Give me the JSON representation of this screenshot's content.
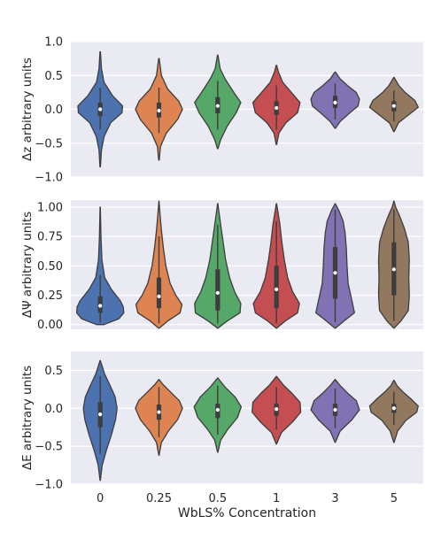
{
  "chart_data": [
    {
      "type": "violin",
      "ylabel": "Δz arbitrary units",
      "xlabel": "",
      "ylim": [
        -1.0,
        1.0
      ],
      "yticks": [
        1.0,
        0.5,
        0.0,
        -0.5,
        -1.0
      ],
      "yticklabels": [
        "1.0",
        "0.5",
        "0.0",
        "−0.5",
        "−1.0"
      ],
      "grid": true,
      "categories": [
        "0",
        "0.25",
        "0.5",
        "1",
        "3",
        "5"
      ],
      "colors": [
        "#4C72B0",
        "#DD8452",
        "#55A868",
        "#C44E52",
        "#8172B3",
        "#937860"
      ],
      "series": [
        {
          "min": -0.85,
          "max": 0.85,
          "median": 0.0,
          "q1": -0.1,
          "q3": 0.1,
          "whisker_low": -0.3,
          "whisker_high": 0.32,
          "profile": [
            [
              -0.85,
              0.01
            ],
            [
              -0.6,
              0.05
            ],
            [
              -0.4,
              0.16
            ],
            [
              -0.2,
              0.42
            ],
            [
              -0.05,
              0.88
            ],
            [
              0.05,
              0.9
            ],
            [
              0.2,
              0.5
            ],
            [
              0.4,
              0.15
            ],
            [
              0.6,
              0.05
            ],
            [
              0.85,
              0.01
            ]
          ]
        },
        {
          "min": -0.75,
          "max": 0.75,
          "median": -0.02,
          "q1": -0.12,
          "q3": 0.1,
          "whisker_low": -0.35,
          "whisker_high": 0.32,
          "profile": [
            [
              -0.75,
              0.01
            ],
            [
              -0.55,
              0.06
            ],
            [
              -0.35,
              0.3
            ],
            [
              -0.15,
              0.75
            ],
            [
              0.0,
              0.95
            ],
            [
              0.12,
              0.8
            ],
            [
              0.3,
              0.35
            ],
            [
              0.5,
              0.1
            ],
            [
              0.75,
              0.01
            ]
          ]
        },
        {
          "min": -0.58,
          "max": 0.8,
          "median": 0.05,
          "q1": -0.06,
          "q3": 0.18,
          "whisker_low": -0.3,
          "whisker_high": 0.42,
          "profile": [
            [
              -0.58,
              0.01
            ],
            [
              -0.45,
              0.12
            ],
            [
              -0.25,
              0.38
            ],
            [
              -0.05,
              0.75
            ],
            [
              0.1,
              0.93
            ],
            [
              0.25,
              0.65
            ],
            [
              0.45,
              0.3
            ],
            [
              0.6,
              0.1
            ],
            [
              0.8,
              0.01
            ]
          ]
        },
        {
          "min": -0.52,
          "max": 0.65,
          "median": 0.02,
          "q1": -0.08,
          "q3": 0.12,
          "whisker_low": -0.3,
          "whisker_high": 0.35,
          "profile": [
            [
              -0.52,
              0.01
            ],
            [
              -0.35,
              0.1
            ],
            [
              -0.2,
              0.38
            ],
            [
              -0.05,
              0.85
            ],
            [
              0.1,
              0.95
            ],
            [
              0.25,
              0.6
            ],
            [
              0.4,
              0.25
            ],
            [
              0.55,
              0.08
            ],
            [
              0.65,
              0.01
            ]
          ]
        },
        {
          "min": -0.28,
          "max": 0.55,
          "median": 0.1,
          "q1": 0.02,
          "q3": 0.2,
          "whisker_low": -0.15,
          "whisker_high": 0.38,
          "profile": [
            [
              -0.28,
              0.01
            ],
            [
              -0.18,
              0.2
            ],
            [
              -0.05,
              0.6
            ],
            [
              0.05,
              0.92
            ],
            [
              0.15,
              0.98
            ],
            [
              0.25,
              0.85
            ],
            [
              0.35,
              0.5
            ],
            [
              0.45,
              0.2
            ],
            [
              0.55,
              0.01
            ]
          ]
        },
        {
          "min": -0.33,
          "max": 0.47,
          "median": 0.05,
          "q1": -0.03,
          "q3": 0.12,
          "whisker_low": -0.18,
          "whisker_high": 0.28,
          "profile": [
            [
              -0.33,
              0.01
            ],
            [
              -0.2,
              0.18
            ],
            [
              -0.08,
              0.6
            ],
            [
              0.03,
              0.98
            ],
            [
              0.13,
              0.85
            ],
            [
              0.25,
              0.45
            ],
            [
              0.35,
              0.2
            ],
            [
              0.47,
              0.01
            ]
          ]
        }
      ]
    },
    {
      "type": "violin",
      "ylabel": "ΔΨ arbitrary units",
      "xlabel": "",
      "ylim": [
        -0.04,
        1.06
      ],
      "yticks": [
        1.0,
        0.75,
        0.5,
        0.25,
        0.0
      ],
      "yticklabels": [
        "1.00",
        "0.75",
        "0.50",
        "0.25",
        "0.00"
      ],
      "grid": true,
      "categories": [
        "0",
        "0.25",
        "0.5",
        "1",
        "3",
        "5"
      ],
      "colors": [
        "#4C72B0",
        "#DD8452",
        "#55A868",
        "#C44E52",
        "#8172B3",
        "#937860"
      ],
      "series": [
        {
          "min": 0.0,
          "max": 1.0,
          "median": 0.16,
          "q1": 0.1,
          "q3": 0.24,
          "whisker_low": 0.02,
          "whisker_high": 0.42,
          "profile": [
            [
              0.0,
              0.15
            ],
            [
              0.05,
              0.75
            ],
            [
              0.1,
              0.95
            ],
            [
              0.15,
              0.93
            ],
            [
              0.2,
              0.82
            ],
            [
              0.3,
              0.45
            ],
            [
              0.4,
              0.18
            ],
            [
              0.55,
              0.07
            ],
            [
              0.75,
              0.03
            ],
            [
              1.0,
              0.005
            ]
          ]
        },
        {
          "min": -0.03,
          "max": 1.05,
          "median": 0.24,
          "q1": 0.14,
          "q3": 0.4,
          "whisker_low": 0.01,
          "whisker_high": 0.75,
          "profile": [
            [
              -0.03,
              0.01
            ],
            [
              0.03,
              0.35
            ],
            [
              0.1,
              0.85
            ],
            [
              0.17,
              0.93
            ],
            [
              0.25,
              0.68
            ],
            [
              0.35,
              0.45
            ],
            [
              0.5,
              0.28
            ],
            [
              0.65,
              0.18
            ],
            [
              0.8,
              0.1
            ],
            [
              0.95,
              0.04
            ],
            [
              1.05,
              0.005
            ]
          ]
        },
        {
          "min": -0.03,
          "max": 1.03,
          "median": 0.27,
          "q1": 0.12,
          "q3": 0.47,
          "whisker_low": 0.01,
          "whisker_high": 0.85,
          "profile": [
            [
              -0.03,
              0.01
            ],
            [
              0.03,
              0.38
            ],
            [
              0.1,
              0.9
            ],
            [
              0.18,
              0.93
            ],
            [
              0.28,
              0.68
            ],
            [
              0.4,
              0.48
            ],
            [
              0.55,
              0.32
            ],
            [
              0.7,
              0.22
            ],
            [
              0.85,
              0.12
            ],
            [
              0.97,
              0.04
            ],
            [
              1.03,
              0.005
            ]
          ]
        },
        {
          "min": -0.03,
          "max": 1.03,
          "median": 0.3,
          "q1": 0.14,
          "q3": 0.5,
          "whisker_low": 0.01,
          "whisker_high": 0.88,
          "profile": [
            [
              -0.03,
              0.01
            ],
            [
              0.03,
              0.35
            ],
            [
              0.1,
              0.85
            ],
            [
              0.18,
              0.93
            ],
            [
              0.28,
              0.65
            ],
            [
              0.4,
              0.45
            ],
            [
              0.55,
              0.32
            ],
            [
              0.7,
              0.22
            ],
            [
              0.85,
              0.14
            ],
            [
              0.97,
              0.05
            ],
            [
              1.03,
              0.005
            ]
          ]
        },
        {
          "min": -0.03,
          "max": 1.03,
          "median": 0.44,
          "q1": 0.22,
          "q3": 0.66,
          "whisker_low": 0.02,
          "whisker_high": 0.98,
          "profile": [
            [
              -0.03,
              0.01
            ],
            [
              0.03,
              0.35
            ],
            [
              0.1,
              0.78
            ],
            [
              0.2,
              0.68
            ],
            [
              0.35,
              0.52
            ],
            [
              0.5,
              0.48
            ],
            [
              0.65,
              0.45
            ],
            [
              0.78,
              0.4
            ],
            [
              0.88,
              0.32
            ],
            [
              0.97,
              0.15
            ],
            [
              1.03,
              0.005
            ]
          ]
        },
        {
          "min": -0.03,
          "max": 1.05,
          "median": 0.47,
          "q1": 0.25,
          "q3": 0.7,
          "whisker_low": 0.03,
          "whisker_high": 0.98,
          "profile": [
            [
              -0.03,
              0.01
            ],
            [
              0.03,
              0.28
            ],
            [
              0.12,
              0.58
            ],
            [
              0.25,
              0.62
            ],
            [
              0.4,
              0.6
            ],
            [
              0.55,
              0.62
            ],
            [
              0.7,
              0.58
            ],
            [
              0.82,
              0.42
            ],
            [
              0.93,
              0.22
            ],
            [
              1.0,
              0.07
            ],
            [
              1.05,
              0.005
            ]
          ]
        }
      ]
    },
    {
      "type": "violin",
      "ylabel": "ΔE arbitrary units",
      "xlabel": "WbLS% Concentration",
      "ylim": [
        -1.0,
        0.75
      ],
      "yticks": [
        0.5,
        0.0,
        -0.5,
        -1.0
      ],
      "yticklabels": [
        "0.5",
        "0.0",
        "−0.5",
        "−1.0"
      ],
      "grid": true,
      "categories": [
        "0",
        "0.25",
        "0.5",
        "1",
        "3",
        "5"
      ],
      "colors": [
        "#4C72B0",
        "#DD8452",
        "#55A868",
        "#C44E52",
        "#8172B3",
        "#937860"
      ],
      "series": [
        {
          "min": -0.95,
          "max": 0.63,
          "median": -0.08,
          "q1": -0.25,
          "q3": 0.08,
          "whisker_low": -0.6,
          "whisker_high": 0.42,
          "profile": [
            [
              -0.95,
              0.005
            ],
            [
              -0.75,
              0.08
            ],
            [
              -0.55,
              0.25
            ],
            [
              -0.35,
              0.45
            ],
            [
              -0.15,
              0.62
            ],
            [
              0.0,
              0.68
            ],
            [
              0.15,
              0.6
            ],
            [
              0.3,
              0.4
            ],
            [
              0.45,
              0.18
            ],
            [
              0.63,
              0.005
            ]
          ]
        },
        {
          "min": -0.62,
          "max": 0.38,
          "median": -0.05,
          "q1": -0.15,
          "q3": 0.05,
          "whisker_low": -0.38,
          "whisker_high": 0.28,
          "profile": [
            [
              -0.62,
              0.005
            ],
            [
              -0.45,
              0.1
            ],
            [
              -0.3,
              0.38
            ],
            [
              -0.15,
              0.75
            ],
            [
              0.0,
              0.95
            ],
            [
              0.1,
              0.82
            ],
            [
              0.22,
              0.45
            ],
            [
              0.32,
              0.15
            ],
            [
              0.38,
              0.005
            ]
          ]
        },
        {
          "min": -0.58,
          "max": 0.4,
          "median": -0.02,
          "q1": -0.13,
          "q3": 0.06,
          "whisker_low": -0.35,
          "whisker_high": 0.3,
          "profile": [
            [
              -0.58,
              0.005
            ],
            [
              -0.42,
              0.12
            ],
            [
              -0.28,
              0.4
            ],
            [
              -0.12,
              0.8
            ],
            [
              0.02,
              0.95
            ],
            [
              0.15,
              0.7
            ],
            [
              0.28,
              0.3
            ],
            [
              0.36,
              0.1
            ],
            [
              0.4,
              0.005
            ]
          ]
        },
        {
          "min": -0.47,
          "max": 0.42,
          "median": -0.01,
          "q1": -0.1,
          "q3": 0.06,
          "whisker_low": -0.28,
          "whisker_high": 0.28,
          "profile": [
            [
              -0.47,
              0.005
            ],
            [
              -0.32,
              0.2
            ],
            [
              -0.18,
              0.65
            ],
            [
              -0.05,
              0.98
            ],
            [
              0.08,
              0.95
            ],
            [
              0.2,
              0.62
            ],
            [
              0.3,
              0.3
            ],
            [
              0.38,
              0.1
            ],
            [
              0.42,
              0.005
            ]
          ]
        },
        {
          "min": -0.45,
          "max": 0.38,
          "median": -0.02,
          "q1": -0.1,
          "q3": 0.06,
          "whisker_low": -0.26,
          "whisker_high": 0.26,
          "profile": [
            [
              -0.45,
              0.005
            ],
            [
              -0.3,
              0.2
            ],
            [
              -0.15,
              0.68
            ],
            [
              -0.02,
              0.98
            ],
            [
              0.1,
              0.85
            ],
            [
              0.2,
              0.5
            ],
            [
              0.3,
              0.2
            ],
            [
              0.38,
              0.005
            ]
          ]
        },
        {
          "min": -0.45,
          "max": 0.37,
          "median": 0.0,
          "q1": -0.06,
          "q3": 0.06,
          "whisker_low": -0.22,
          "whisker_high": 0.22,
          "profile": [
            [
              -0.45,
              0.005
            ],
            [
              -0.3,
              0.15
            ],
            [
              -0.16,
              0.48
            ],
            [
              -0.05,
              0.92
            ],
            [
              0.03,
              0.98
            ],
            [
              0.12,
              0.7
            ],
            [
              0.22,
              0.35
            ],
            [
              0.3,
              0.12
            ],
            [
              0.37,
              0.005
            ]
          ]
        }
      ]
    }
  ]
}
